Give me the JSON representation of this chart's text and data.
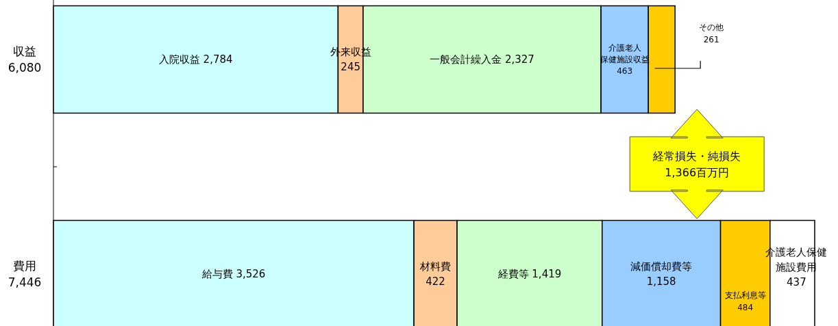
{
  "chart_data": {
    "type": "bar",
    "orientation": "horizontal",
    "stacked": true,
    "categories": [
      "収益\n6,080",
      "費用\n7,446"
    ],
    "series": [
      {
        "color": "#ccffff",
        "values": [
          2784,
          3526
        ],
        "value_labels": [
          "入院収益  2,784",
          "給与費  3,526"
        ]
      },
      {
        "color": "#ffcc99",
        "values": [
          245,
          422
        ],
        "value_labels": [
          "外来収益\n245",
          "材料費\n422"
        ]
      },
      {
        "color": "#ccffcc",
        "values": [
          2327,
          1419
        ],
        "value_labels": [
          "一般会計繰入金  2,327",
          "経費等  1,419"
        ]
      },
      {
        "color": "#99ccff",
        "values": [
          463,
          1158
        ],
        "value_labels": [
          "介護老人保健施設収益\n463",
          "減価償却費等\n1,158"
        ]
      },
      {
        "color": "#ffcc00",
        "values": [
          261,
          484
        ],
        "value_labels": [
          "その他\n261",
          "支払利息等\n484"
        ]
      },
      {
        "color": "#ffffff",
        "values": [
          null,
          437
        ],
        "value_labels": [
          null,
          "介護老人保健施設費用\n437"
        ]
      }
    ],
    "annotations": [
      "経常損失・純損失\n1,366百万円"
    ]
  }
}
